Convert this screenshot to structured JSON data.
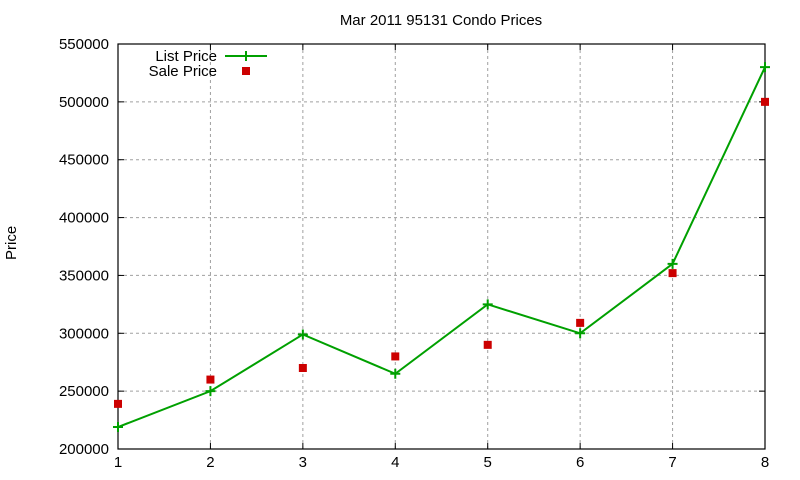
{
  "chart_data": {
    "type": "line",
    "title": "Mar 2011 95131 Condo Prices",
    "xlabel": "",
    "ylabel": "Price",
    "x": [
      1,
      2,
      3,
      4,
      5,
      6,
      7,
      8
    ],
    "xlim": [
      1,
      8
    ],
    "ylim": [
      200000,
      550000
    ],
    "yticks": [
      200000,
      250000,
      300000,
      350000,
      400000,
      450000,
      500000,
      550000
    ],
    "xticks": [
      1,
      2,
      3,
      4,
      5,
      6,
      7,
      8
    ],
    "grid": true,
    "legend_position": "top-left",
    "series": [
      {
        "name": "List Price",
        "style": "line+cross",
        "color": "#00a000",
        "values": [
          219000,
          250000,
          299000,
          265000,
          325000,
          300000,
          360000,
          530000
        ]
      },
      {
        "name": "Sale Price",
        "style": "square-points",
        "color": "#cc0000",
        "values": [
          239000,
          260000,
          270000,
          280000,
          290000,
          309000,
          352000,
          500000
        ]
      }
    ]
  }
}
